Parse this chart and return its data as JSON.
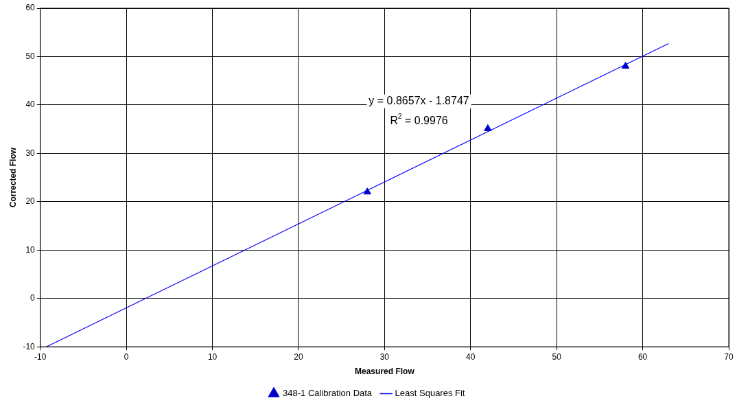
{
  "chart_data": {
    "type": "scatter",
    "xlabel": "Measured Flow",
    "ylabel": "Corrected Flow",
    "series": [
      {
        "name": "348-1 Calibration Data",
        "type": "scatter",
        "marker": "triangle",
        "color": "#0000cc",
        "x": [
          28,
          42,
          58
        ],
        "values": [
          22,
          35.1,
          48
        ]
      },
      {
        "name": "Least Squares Fit",
        "type": "line",
        "marker": "none",
        "line_style": "solid",
        "color": "#0000ff",
        "x": [
          -9.3,
          63
        ],
        "values": [
          -10,
          52.7
        ]
      }
    ],
    "annotations": [
      "y = 0.8657x - 1.8747",
      "R$^{2}$ = 0.9976"
    ],
    "xlim": [
      -10,
      70
    ],
    "xticks": [
      -10,
      0,
      10,
      20,
      30,
      40,
      50,
      60,
      70
    ],
    "ylim": [
      -10,
      60
    ],
    "yticks": [
      -10,
      0,
      10,
      20,
      30,
      40,
      50,
      60
    ],
    "grid": true,
    "legend": "bottom"
  }
}
